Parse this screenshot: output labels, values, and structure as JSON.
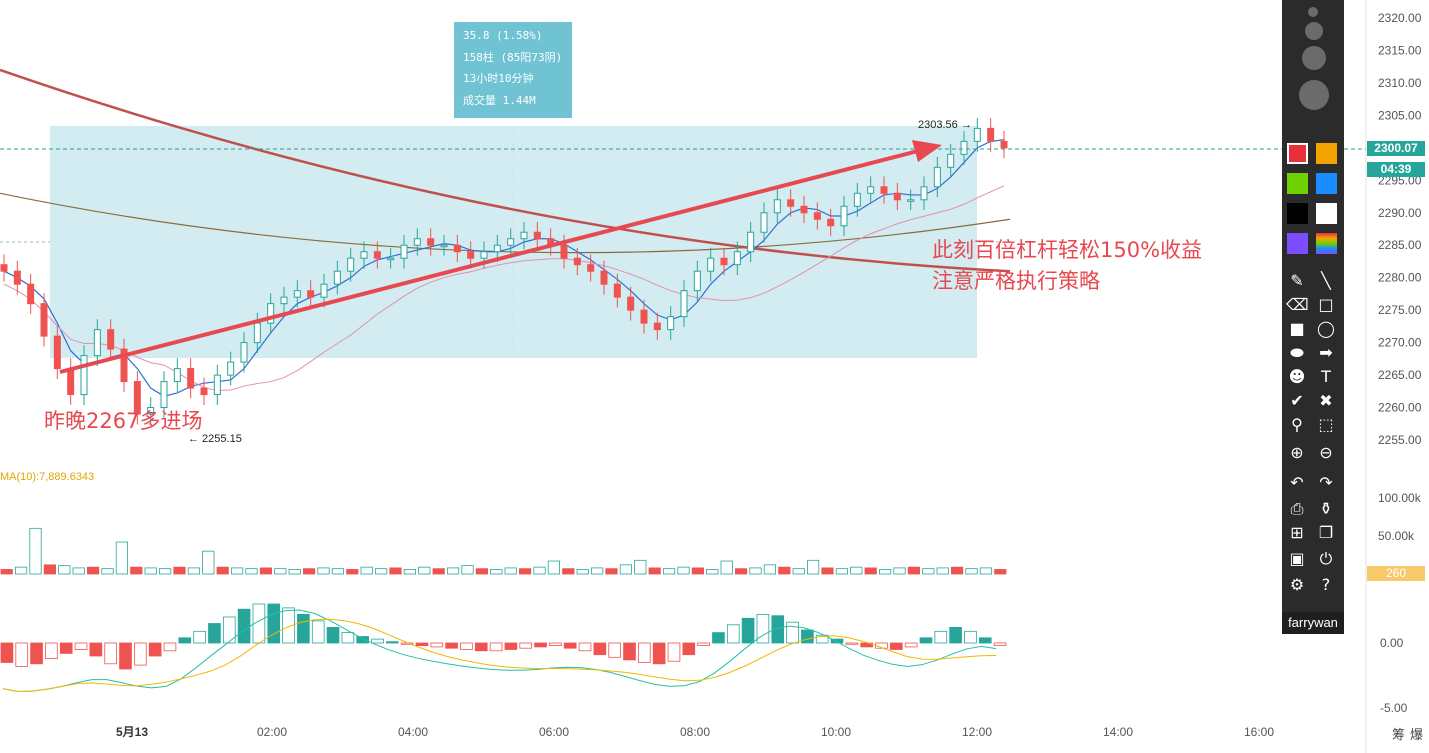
{
  "chart_data": [
    {
      "type": "candlestick",
      "title": "",
      "x_ticks": [
        "5月13",
        "02:00",
        "04:00",
        "06:00",
        "08:00",
        "10:00",
        "12:00",
        "14:00",
        "16:00"
      ],
      "y_ticks": [
        "2320.00",
        "2315.00",
        "2310.00",
        "2305.00",
        "2300.00",
        "2295.00",
        "2290.00",
        "2285.00",
        "2280.00",
        "2275.00",
        "2270.00",
        "2265.00",
        "2260.00",
        "2255.00"
      ],
      "ylim": [
        2251,
        2322
      ],
      "current_price": "2300.07",
      "countdown": "04:39",
      "high_label": "2303.56",
      "low_label": "2255.15",
      "series": [
        {
          "name": "price",
          "values": [
            2281,
            2279,
            2276,
            2271,
            2266,
            2262,
            2268,
            2272,
            2269,
            2264,
            2259,
            2260,
            2264,
            2266,
            2263,
            2262,
            2265,
            2267,
            2270,
            2273,
            2276,
            2277,
            2278,
            2277,
            2279,
            2281,
            2283,
            2284,
            2283,
            2283,
            2285,
            2286,
            2285,
            2285,
            2284,
            2283,
            2284,
            2285,
            2286,
            2287,
            2286,
            2285,
            2283,
            2282,
            2281,
            2279,
            2277,
            2275,
            2273,
            2272,
            2274,
            2278,
            2281,
            2283,
            2282,
            2284,
            2287,
            2290,
            2292,
            2291,
            2290,
            2289,
            2288,
            2291,
            2293,
            2294,
            2293,
            2292,
            2292,
            2294,
            2297,
            2299,
            2301,
            2303,
            2301,
            2300
          ]
        }
      ],
      "moving_averages": [
        {
          "name": "ma-long",
          "color": "#c0504d",
          "values": [
            2312,
            2285,
            2281
          ]
        },
        {
          "name": "ma-mid",
          "color": "#8b6b3d",
          "values": [
            2293,
            2277,
            2289
          ]
        }
      ],
      "selection": {
        "change": "35.8 (1.58%)",
        "bars": "158柱 (85阳73阴)",
        "duration": "13小时10分钟",
        "volume": "成交量 1.44M"
      }
    },
    {
      "type": "bar",
      "title": "MA(10):7,889.6343",
      "y_ticks": [
        "100.00k",
        "50.00k"
      ],
      "ylim": [
        0,
        120000
      ],
      "current_value": "260",
      "values": [
        6000,
        9000,
        60000,
        12000,
        11000,
        8000,
        9000,
        7000,
        42000,
        9000,
        8000,
        7000,
        9000,
        8000,
        30000,
        9000,
        8000,
        7000,
        8000,
        7000,
        6000,
        7000,
        8000,
        7000,
        6000,
        9000,
        7000,
        8000,
        6000,
        9000,
        7000,
        8000,
        11000,
        7000,
        6000,
        8000,
        7000,
        9000,
        17000,
        7000,
        6000,
        8000,
        7000,
        12000,
        18000,
        8000,
        7000,
        9000,
        8000,
        6000,
        17000,
        7000,
        8000,
        12000,
        9000,
        7000,
        18000,
        8000,
        7000,
        9000,
        8000,
        6000,
        8000,
        9000,
        7000,
        8000,
        9000,
        7000,
        8000,
        6000
      ]
    },
    {
      "type": "bar",
      "title": "",
      "y_ticks": [
        "0.00",
        "-5.00"
      ],
      "ylim": [
        -6.5,
        3.8
      ],
      "values": [
        -1.5,
        -1.8,
        -1.6,
        -1.2,
        -0.8,
        -0.5,
        -1.0,
        -1.6,
        -2.0,
        -1.7,
        -1.0,
        -0.6,
        0.4,
        0.9,
        1.5,
        2.0,
        2.6,
        3.0,
        3.0,
        2.7,
        2.2,
        1.7,
        1.2,
        0.8,
        0.5,
        0.3,
        0.1,
        -0.1,
        -0.2,
        -0.3,
        -0.4,
        -0.5,
        -0.6,
        -0.6,
        -0.5,
        -0.4,
        -0.3,
        -0.2,
        -0.4,
        -0.6,
        -0.9,
        -1.1,
        -1.3,
        -1.5,
        -1.6,
        -1.4,
        -0.9,
        -0.2,
        0.8,
        1.4,
        1.9,
        2.2,
        2.1,
        1.6,
        1.0,
        0.6,
        0.3,
        -0.1,
        -0.3,
        -0.4,
        -0.5,
        -0.3,
        0.4,
        0.9,
        1.2,
        0.9,
        0.4,
        -0.2
      ]
    }
  ],
  "tooltip": {
    "line1": "35.8 (1.58%)",
    "line2": "158柱 (85阳73阴)",
    "line3": "13小时10分钟",
    "line4": "成交量 1.44M"
  },
  "annotations": {
    "entry": "昨晚2267多进场",
    "profit": "此刻百倍杠杆轻松150%收益",
    "advice": "注意严格执行策略"
  },
  "toolbar": {
    "user": "farrywan",
    "colors": [
      "#e8303a",
      "#f5a300",
      "#6fd100",
      "#1a8cff",
      "#000000",
      "#ffffff",
      "#7b4dff",
      "rainbow"
    ],
    "icons": [
      "pencil-icon",
      "line-icon",
      "eraser-icon",
      "square-outline-icon",
      "square-filled-icon",
      "ellipse-outline-icon",
      "ellipse-filled-icon",
      "arrow-icon",
      "person-icon",
      "text-icon",
      "check-icon",
      "cross-icon",
      "eyedropper-icon",
      "selection-icon",
      "zoom-in-icon",
      "zoom-out-icon",
      "undo-icon",
      "redo-icon",
      "print-icon",
      "stamp-icon",
      "add-page-icon",
      "copy-icon",
      "save-icon",
      "power-icon",
      "gear-icon",
      "help-icon"
    ]
  },
  "bottom_right": {
    "left": "筹",
    "right": "爆"
  }
}
